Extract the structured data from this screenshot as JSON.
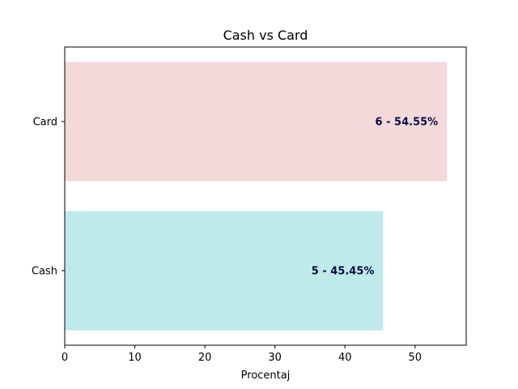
{
  "chart_data": {
    "type": "bar",
    "orientation": "horizontal",
    "title": "Cash vs Card",
    "xlabel": "Procentaj",
    "ylabel": "",
    "categories": [
      "Cash",
      "Card"
    ],
    "values": [
      45.45,
      54.55
    ],
    "bar_labels": [
      "5 - 45.45%",
      "6 - 54.55%"
    ],
    "bar_colors": [
      "#bfeaea",
      "#f3d9da"
    ],
    "label_color": "#0b0b45",
    "xlim": [
      0,
      57.3
    ],
    "xticks": [
      0,
      10,
      20,
      30,
      40,
      50
    ],
    "xtick_labels": [
      "0",
      "10",
      "20",
      "30",
      "40",
      "50"
    ],
    "grid": false,
    "legend": "none"
  }
}
